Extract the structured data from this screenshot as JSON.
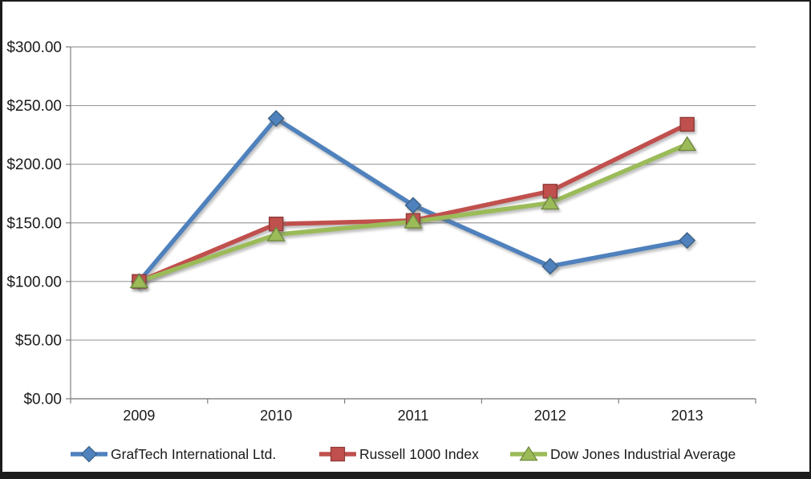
{
  "frame": {
    "background": "#FFFFFF",
    "border_color": "#1C1C1C"
  },
  "chart_data": {
    "type": "line",
    "title": "",
    "xlabel": "",
    "ylabel": "",
    "categories": [
      "2009",
      "2010",
      "2011",
      "2012",
      "2013"
    ],
    "series": [
      {
        "name": "GrafTech International Ltd.",
        "marker": "diamond",
        "color": "#4F81BD",
        "edge_color": "#3A6186",
        "values": [
          100,
          239,
          165,
          113,
          135
        ]
      },
      {
        "name": "Russell 1000 Index",
        "marker": "square",
        "color": "#C0504D",
        "edge_color": "#8E3A38",
        "values": [
          100,
          149,
          152,
          177,
          234
        ]
      },
      {
        "name": "Dow Jones Industrial Average",
        "marker": "triangle",
        "color": "#9BBB59",
        "edge_color": "#71893F",
        "values": [
          100,
          140,
          151,
          167,
          217
        ]
      }
    ],
    "y_axis": {
      "min": 0,
      "max": 300,
      "step": 50,
      "tick_labels": [
        "$0.00",
        "$50.00",
        "$100.00",
        "$150.00",
        "$200.00",
        "$250.00",
        "$300.00"
      ]
    },
    "x_axis": {
      "tick_labels": [
        "2009",
        "2010",
        "2011",
        "2012",
        "2013"
      ]
    },
    "grid": true,
    "legend_position": "bottom",
    "ylim": [
      0,
      300
    ],
    "styles": {
      "grid_color": "#9C9C9C",
      "axis_color": "#7F7F7F",
      "label_color": "#1A1A1A"
    }
  }
}
